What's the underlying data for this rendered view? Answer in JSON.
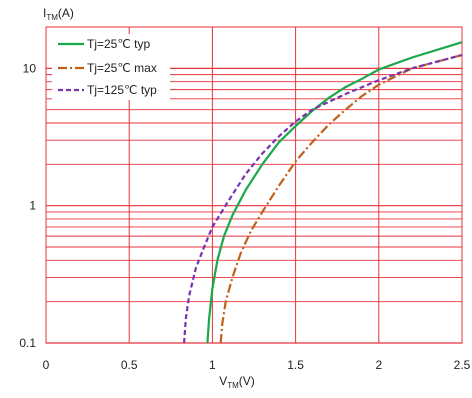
{
  "chart_data": {
    "type": "line",
    "xlabel": {
      "main": "V",
      "sub": "TM",
      "unit": "(V)"
    },
    "ylabel": {
      "main": "I",
      "sub": "TM",
      "unit": "(A)"
    },
    "xlim": [
      0,
      2.5
    ],
    "ylim": [
      0.1,
      20
    ],
    "yscale": "log",
    "grid": true,
    "grid_color": "#e8323c",
    "legend": "top-left",
    "x_ticks": [
      "0",
      "0.5",
      "1",
      "1.5",
      "2",
      "2.5"
    ],
    "x_tick_values": [
      0,
      0.5,
      1,
      1.5,
      2,
      2.5
    ],
    "y_ticks": [
      "0.1",
      "1",
      "10"
    ],
    "y_tick_values": [
      0.1,
      1,
      10
    ],
    "series": [
      {
        "name": "Tj=25℃ typ",
        "color": "#1aa84a",
        "dash": "solid",
        "x": [
          0.97,
          0.98,
          1.0,
          1.03,
          1.07,
          1.12,
          1.2,
          1.3,
          1.4,
          1.5,
          1.6,
          1.7,
          1.8,
          1.9,
          2.0,
          2.2,
          2.5
        ],
        "y": [
          0.1,
          0.15,
          0.25,
          0.4,
          0.6,
          0.85,
          1.3,
          2.0,
          2.9,
          3.8,
          4.9,
          6.1,
          7.3,
          8.4,
          9.8,
          12.0,
          15.5
        ]
      },
      {
        "name": "Tj=25℃ max",
        "color": "#c0601a",
        "dash": "dashdot",
        "x": [
          1.05,
          1.06,
          1.08,
          1.12,
          1.17,
          1.23,
          1.3,
          1.4,
          1.5,
          1.6,
          1.7,
          1.8,
          1.9,
          2.0,
          2.2,
          2.5
        ],
        "y": [
          0.1,
          0.14,
          0.2,
          0.3,
          0.45,
          0.65,
          0.9,
          1.4,
          2.1,
          2.9,
          3.9,
          5.0,
          6.3,
          7.6,
          10.0,
          12.5
        ]
      },
      {
        "name": "Tj=125℃ typ",
        "color": "#7a33b0",
        "dash": "dash",
        "x": [
          0.83,
          0.84,
          0.86,
          0.9,
          0.95,
          1.0,
          1.1,
          1.2,
          1.3,
          1.4,
          1.5,
          1.6,
          1.8,
          2.0,
          2.2,
          2.5
        ],
        "y": [
          0.1,
          0.15,
          0.22,
          0.35,
          0.5,
          0.7,
          1.1,
          1.7,
          2.4,
          3.2,
          4.1,
          5.0,
          6.5,
          8.2,
          10.0,
          12.5
        ]
      }
    ]
  }
}
